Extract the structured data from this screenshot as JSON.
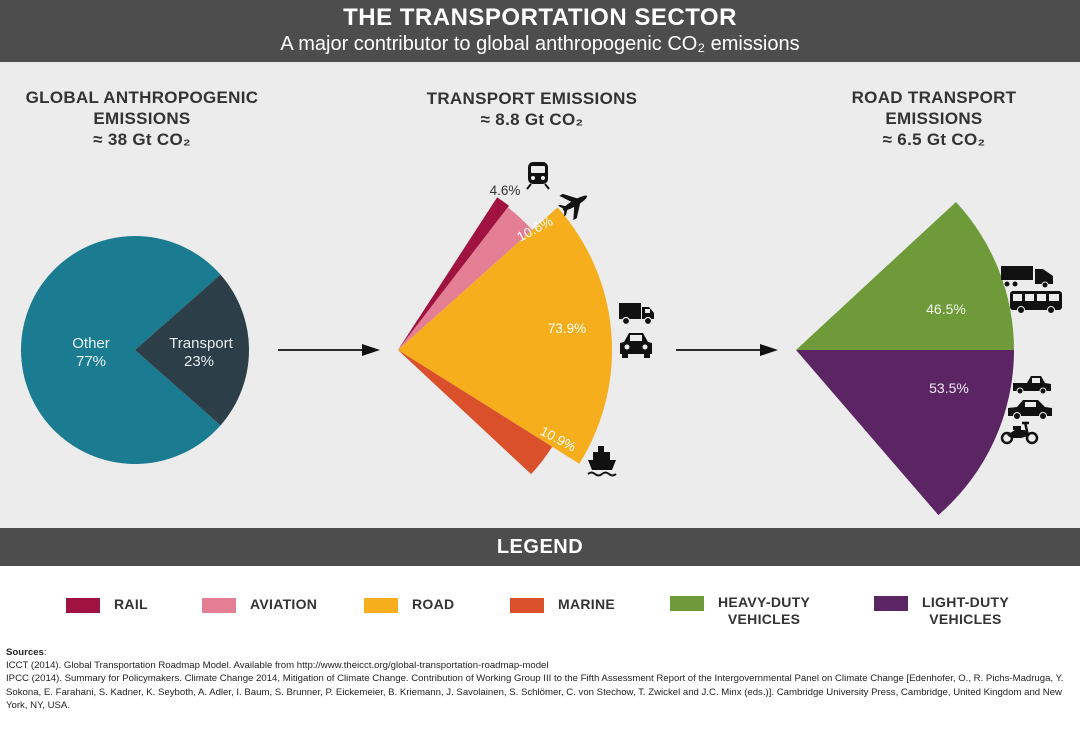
{
  "header": {
    "title": "THE TRANSPORTATION SECTOR",
    "subtitle": "A major contributor to global anthropogenic CO₂ emissions"
  },
  "columns": {
    "global": {
      "title_line1": "GLOBAL ANTHROPOGENIC",
      "title_line2": "EMISSIONS",
      "total": "≈  38 Gt CO₂"
    },
    "transport": {
      "title_line1": "TRANSPORT EMISSIONS",
      "total": "≈ 8.8 Gt CO₂"
    },
    "road": {
      "title_line1": "ROAD TRANSPORT",
      "title_line2": "EMISSIONS",
      "total": "≈ 6.5 Gt CO₂"
    }
  },
  "colors": {
    "other": "#1a7b91",
    "transport": "#2c3e47",
    "rail": "#a0123f",
    "aviation": "#e47e94",
    "road": "#f6ae1c",
    "marine": "#d9502b",
    "heavy_duty": "#6e9a3a",
    "light_duty": "#5b2564"
  },
  "chart_data": [
    {
      "type": "pie",
      "title": "GLOBAL ANTHROPOGENIC EMISSIONS ≈ 38 Gt CO₂",
      "labels": [
        "Other",
        "Transport"
      ],
      "values": [
        77,
        23
      ],
      "display": [
        "77%",
        "23%"
      ]
    },
    {
      "type": "pie",
      "title": "TRANSPORT EMISSIONS ≈ 8.8 Gt CO₂",
      "labels": [
        "Rail",
        "Aviation",
        "Road",
        "Marine"
      ],
      "values": [
        4.6,
        10.6,
        73.9,
        10.9
      ],
      "display": [
        "4.6%",
        "10.6%",
        "73.9%",
        "10.9%"
      ]
    },
    {
      "type": "pie",
      "title": "ROAD TRANSPORT EMISSIONS ≈ 6.5 Gt CO₂",
      "labels": [
        "Heavy-duty vehicles",
        "Light-duty vehicles"
      ],
      "values": [
        46.5,
        53.5
      ],
      "display": [
        "46.5%",
        "53.5%"
      ]
    }
  ],
  "legend": {
    "title": "LEGEND",
    "items": [
      {
        "line1": "RAIL",
        "line2": ""
      },
      {
        "line1": "AVIATION",
        "line2": ""
      },
      {
        "line1": "ROAD",
        "line2": ""
      },
      {
        "line1": "MARINE",
        "line2": ""
      },
      {
        "line1": "HEAVY-DUTY",
        "line2": "VEHICLES"
      },
      {
        "line1": "LIGHT-DUTY",
        "line2": "VEHICLES"
      }
    ]
  },
  "sources": {
    "heading": "Sources",
    "line1": "ICCT (2014). Global Transportation Roadmap Model. Available from http://www.theicct.org/global-transportation-roadmap-model",
    "line2": "IPCC (2014). Summary for Policymakers. Climate Change 2014, Mitigation of Climate Change. Contribution of Working Group III to the Fifth Assessment Report of the Intergovernmental Panel on Climate Change [Edenhofer, O., R. Pichs-Madruga, Y. Sokona, E. Farahani, S. Kadner, K. Seyboth, A. Adler, I. Baum, S. Brunner, P. Eickemeier, B. Kriemann, J. Savolainen, S. Schlömer, C. von Stechow, T. Zwickel and J.C. Minx (eds.)]. Cambridge University Press, Cambridge, United Kingdom and New York, NY, USA."
  }
}
